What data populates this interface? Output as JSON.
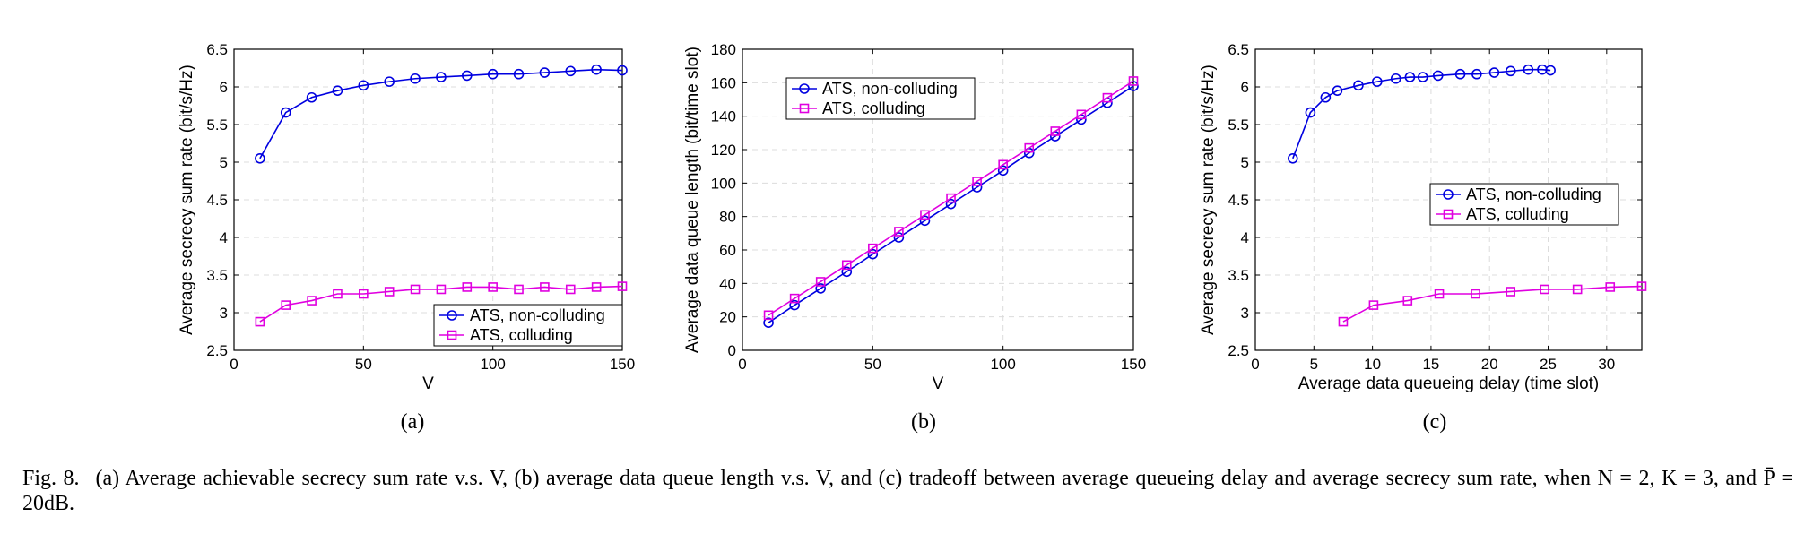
{
  "caption": {
    "label": "Fig. 8.",
    "text": "(a) Average achievable secrecy sum rate v.s. V, (b) average data queue length v.s. V, and (c) tradeoff between average queueing delay and average secrecy sum rate, when N = 2, K = 3, and P̄ = 20dB."
  },
  "colors": {
    "non_colluding": "#0000e0",
    "colluding": "#e000e0"
  },
  "chart_data": [
    {
      "panel": "(a)",
      "type": "line",
      "xlabel": "V",
      "ylabel": "Average secrecy sum rate (bit/s/Hz)",
      "xlim": [
        0,
        150
      ],
      "ylim": [
        2.5,
        6.5
      ],
      "xticks": [
        0,
        50,
        100,
        150
      ],
      "yticks": [
        2.5,
        3,
        3.5,
        4,
        4.5,
        5,
        5.5,
        6,
        6.5
      ],
      "grid": true,
      "legend_position": "lower-right",
      "series": [
        {
          "name": "ATS, non-colluding",
          "marker": "circle",
          "color": "#0000e0",
          "x": [
            10,
            20,
            30,
            40,
            50,
            60,
            70,
            80,
            90,
            100,
            110,
            120,
            130,
            140,
            150
          ],
          "y": [
            5.05,
            5.66,
            5.86,
            5.95,
            6.02,
            6.07,
            6.11,
            6.13,
            6.15,
            6.17,
            6.17,
            6.19,
            6.21,
            6.23,
            6.22
          ]
        },
        {
          "name": "ATS, colluding",
          "marker": "square",
          "color": "#e000e0",
          "x": [
            10,
            20,
            30,
            40,
            50,
            60,
            70,
            80,
            90,
            100,
            110,
            120,
            130,
            140,
            150
          ],
          "y": [
            2.88,
            3.1,
            3.16,
            3.25,
            3.25,
            3.28,
            3.31,
            3.31,
            3.34,
            3.34,
            3.31,
            3.34,
            3.31,
            3.34,
            3.35
          ]
        }
      ]
    },
    {
      "panel": "(b)",
      "type": "line",
      "xlabel": "V",
      "ylabel": "Average data queue length (bit/time slot)",
      "xlim": [
        0,
        150
      ],
      "ylim": [
        0,
        180
      ],
      "xticks": [
        0,
        50,
        100,
        150
      ],
      "yticks": [
        0,
        20,
        40,
        60,
        80,
        100,
        120,
        140,
        160,
        180
      ],
      "grid": true,
      "legend_position": "upper-left",
      "series": [
        {
          "name": "ATS, non-colluding",
          "marker": "circle",
          "color": "#0000e0",
          "x": [
            10,
            20,
            30,
            40,
            50,
            60,
            70,
            80,
            90,
            100,
            110,
            120,
            130,
            140,
            150
          ],
          "y": [
            16.5,
            27,
            37,
            47,
            57.5,
            67.5,
            77.5,
            87.5,
            97.5,
            107.5,
            118,
            128,
            138,
            148,
            158
          ]
        },
        {
          "name": "ATS, colluding",
          "marker": "square",
          "color": "#e000e0",
          "x": [
            10,
            20,
            30,
            40,
            50,
            60,
            70,
            80,
            90,
            100,
            110,
            120,
            130,
            140,
            150
          ],
          "y": [
            21,
            31,
            41,
            51,
            61,
            71,
            81,
            91,
            101,
            111,
            121,
            131,
            141,
            151,
            161
          ]
        }
      ]
    },
    {
      "panel": "(c)",
      "type": "line",
      "xlabel": "Average data queueing delay (time slot)",
      "ylabel": "Average secrecy sum rate (bit/s/Hz)",
      "xlim": [
        0,
        33
      ],
      "ylim": [
        2.5,
        6.5
      ],
      "xticks": [
        0,
        5,
        10,
        15,
        20,
        25,
        30
      ],
      "yticks": [
        2.5,
        3,
        3.5,
        4,
        4.5,
        5,
        5.5,
        6,
        6.5
      ],
      "grid": true,
      "legend_position": "center-right",
      "series": [
        {
          "name": "ATS, non-colluding",
          "marker": "circle",
          "color": "#0000e0",
          "x": [
            3.2,
            4.7,
            6.0,
            7.0,
            8.8,
            10.4,
            12.0,
            13.2,
            14.3,
            15.6,
            17.5,
            18.9,
            20.4,
            21.8,
            23.3,
            24.5,
            25.2
          ],
          "y": [
            5.05,
            5.66,
            5.86,
            5.95,
            6.02,
            6.07,
            6.11,
            6.13,
            6.13,
            6.15,
            6.17,
            6.17,
            6.19,
            6.21,
            6.23,
            6.23,
            6.22
          ]
        },
        {
          "name": "ATS, colluding",
          "marker": "square",
          "color": "#e000e0",
          "x": [
            7.5,
            10.1,
            13.0,
            15.7,
            18.8,
            21.8,
            24.7,
            27.5,
            30.3,
            33.0
          ],
          "y": [
            2.88,
            3.1,
            3.16,
            3.25,
            3.25,
            3.28,
            3.31,
            3.31,
            3.34,
            3.35
          ]
        }
      ]
    }
  ]
}
